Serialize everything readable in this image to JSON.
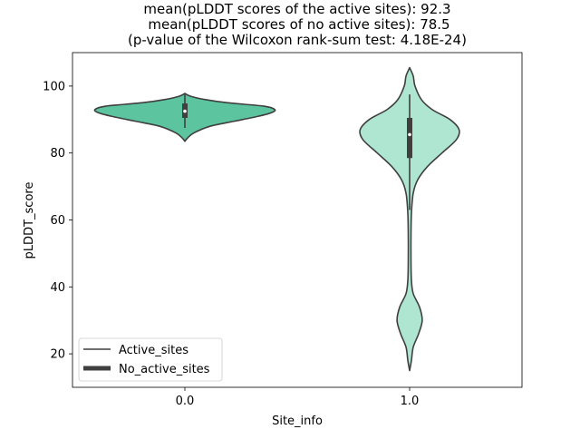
{
  "chart_data": {
    "type": "violin",
    "title_lines": [
      "mean(pLDDT scores of the active sites): 92.3",
      "mean(pLDDT scores of no active sites): 78.5",
      "(p-value of the Wilcoxon rank-sum test: 4.18E-24)"
    ],
    "xlabel": "Site_info",
    "ylabel": "pLDDT_score",
    "categories": [
      "0.0",
      "1.0"
    ],
    "ylim": [
      10,
      110
    ],
    "yticks": [
      20,
      40,
      60,
      80,
      100
    ],
    "legend": {
      "placement": "lower-left",
      "entries": [
        {
          "label": "Active_sites",
          "style": "thin-line"
        },
        {
          "label": "No_active_sites",
          "style": "thick-line"
        }
      ]
    },
    "violins": [
      {
        "category": "0.0",
        "color": "#5cc5a0",
        "min": 87.5,
        "q1": 90.5,
        "median": 92.5,
        "q3": 94.8,
        "max": 97.5,
        "density": [
          [
            83.5,
            0.0
          ],
          [
            84.5,
            0.03
          ],
          [
            86.0,
            0.1
          ],
          [
            88.0,
            0.28
          ],
          [
            89.5,
            0.55
          ],
          [
            91.0,
            0.82
          ],
          [
            92.0,
            0.96
          ],
          [
            93.0,
            1.0
          ],
          [
            94.0,
            0.88
          ],
          [
            95.0,
            0.48
          ],
          [
            96.0,
            0.22
          ],
          [
            97.0,
            0.06
          ],
          [
            97.8,
            0.0
          ]
        ]
      },
      {
        "category": "1.0",
        "color": "#aee6d2",
        "min": 63.0,
        "q1": 78.5,
        "median": 85.5,
        "q3": 90.5,
        "max": 97.5,
        "density": [
          [
            15.0,
            0.0
          ],
          [
            18.0,
            0.02
          ],
          [
            22.0,
            0.04
          ],
          [
            26.0,
            0.1
          ],
          [
            30.0,
            0.14
          ],
          [
            34.0,
            0.11
          ],
          [
            38.0,
            0.04
          ],
          [
            42.0,
            0.02
          ],
          [
            48.0,
            0.015
          ],
          [
            55.0,
            0.015
          ],
          [
            62.0,
            0.02
          ],
          [
            68.0,
            0.04
          ],
          [
            72.0,
            0.09
          ],
          [
            76.0,
            0.2
          ],
          [
            80.0,
            0.36
          ],
          [
            84.0,
            0.52
          ],
          [
            87.0,
            0.55
          ],
          [
            90.0,
            0.45
          ],
          [
            93.0,
            0.25
          ],
          [
            96.0,
            0.13
          ],
          [
            100.0,
            0.06
          ],
          [
            103.0,
            0.04
          ],
          [
            105.5,
            0.0
          ]
        ]
      }
    ]
  }
}
